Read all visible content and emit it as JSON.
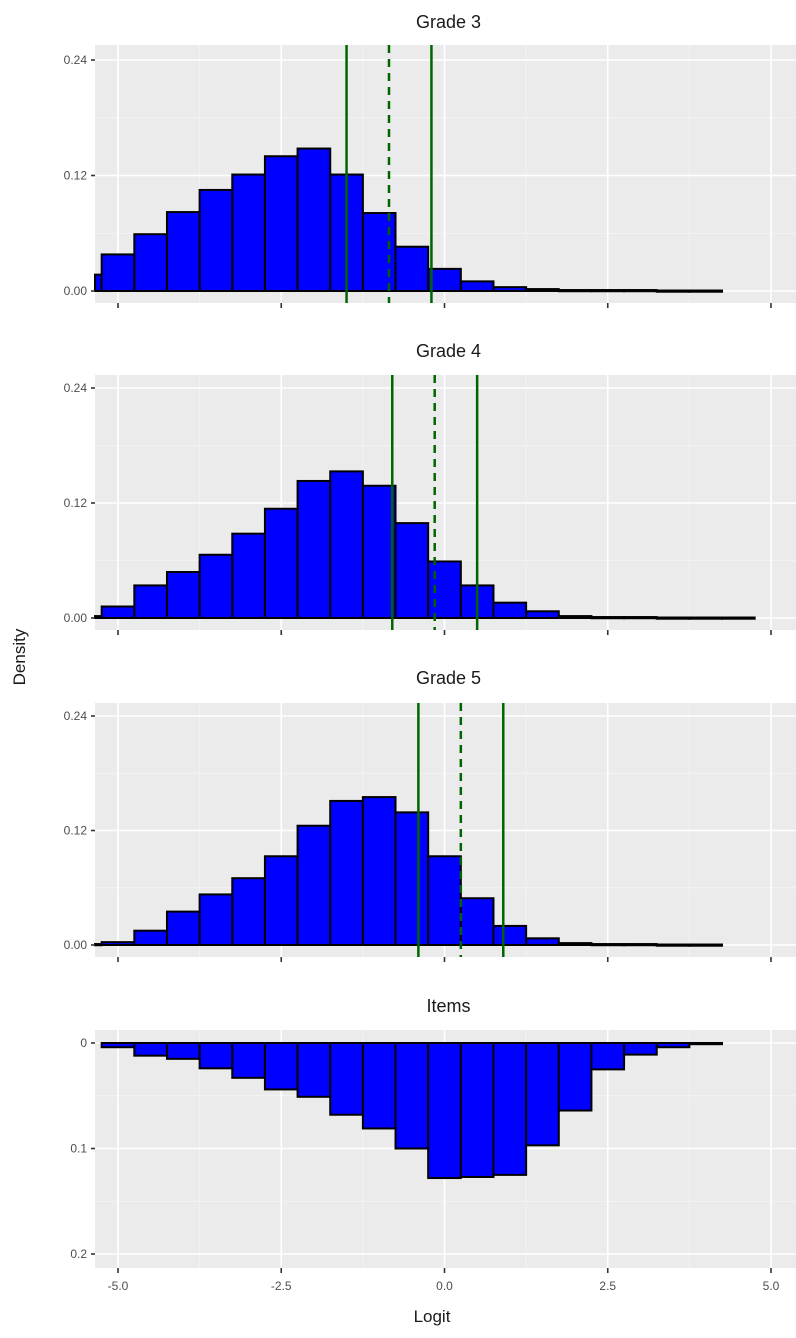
{
  "chart_data": {
    "type": "histogram",
    "ylabel": "Density",
    "xlabel": "Logit",
    "xlim": [
      -5.5,
      5.0
    ],
    "xticks": [
      -5.0,
      -2.5,
      0.0,
      2.5,
      5.0
    ],
    "xtick_labels": [
      "-5.0",
      "-2.5",
      "0.0",
      "2.5",
      "5.0"
    ],
    "bin_width": 0.5,
    "panels": [
      {
        "title": "Grade 3",
        "ylim": [
          0,
          0.24
        ],
        "yticks": [
          0,
          0.12,
          0.24
        ],
        "ytick_labels": [
          "0.00",
          "0.12",
          "0.24"
        ],
        "bar_color": "#0000ff",
        "bin_centers": [
          -5.5,
          -5.0,
          -4.5,
          -4.0,
          -3.5,
          -3.0,
          -2.5,
          -2.0,
          -1.5,
          -1.0,
          -0.5,
          0.0,
          0.5,
          1.0,
          1.5,
          2.0,
          2.5,
          3.0,
          3.5,
          4.0
        ],
        "density": [
          0.017,
          0.038,
          0.059,
          0.082,
          0.105,
          0.121,
          0.14,
          0.148,
          0.121,
          0.081,
          0.046,
          0.023,
          0.01,
          0.004,
          0.002,
          0.001,
          0.001,
          0.001,
          0.0005,
          0.0005
        ],
        "reference_lines": [
          {
            "x": -1.5,
            "style": "solid",
            "color": "#006400"
          },
          {
            "x": -0.85,
            "style": "dashed",
            "color": "#006400"
          },
          {
            "x": -0.2,
            "style": "solid",
            "color": "#006400"
          }
        ]
      },
      {
        "title": "Grade 4",
        "ylim": [
          0,
          0.24
        ],
        "yticks": [
          0,
          0.12,
          0.24
        ],
        "ytick_labels": [
          "0.00",
          "0.12",
          "0.24"
        ],
        "bar_color": "#0000ff",
        "bin_centers": [
          -5.5,
          -5.0,
          -4.5,
          -4.0,
          -3.5,
          -3.0,
          -2.5,
          -2.0,
          -1.5,
          -1.0,
          -0.5,
          0.0,
          0.5,
          1.0,
          1.5,
          2.0,
          2.5,
          3.0,
          3.5,
          4.0,
          4.5
        ],
        "density": [
          0.002,
          0.012,
          0.034,
          0.048,
          0.066,
          0.088,
          0.114,
          0.143,
          0.153,
          0.138,
          0.099,
          0.059,
          0.034,
          0.016,
          0.007,
          0.002,
          0.001,
          0.001,
          0.0005,
          0.0005,
          0.0005
        ],
        "reference_lines": [
          {
            "x": -0.8,
            "style": "solid",
            "color": "#006400"
          },
          {
            "x": -0.15,
            "style": "dashed",
            "color": "#006400"
          },
          {
            "x": 0.5,
            "style": "solid",
            "color": "#006400"
          }
        ]
      },
      {
        "title": "Grade 5",
        "ylim": [
          0,
          0.24
        ],
        "yticks": [
          0,
          0.12,
          0.24
        ],
        "ytick_labels": [
          "0.00",
          "0.12",
          "0.24"
        ],
        "bar_color": "#0000ff",
        "bin_centers": [
          -5.5,
          -5.0,
          -4.5,
          -4.0,
          -3.5,
          -3.0,
          -2.5,
          -2.0,
          -1.5,
          -1.0,
          -0.5,
          0.0,
          0.5,
          1.0,
          1.5,
          2.0,
          2.5,
          3.0,
          3.5,
          4.0
        ],
        "density": [
          0.001,
          0.003,
          0.015,
          0.035,
          0.053,
          0.07,
          0.093,
          0.125,
          0.151,
          0.155,
          0.139,
          0.093,
          0.049,
          0.02,
          0.007,
          0.002,
          0.001,
          0.001,
          0.0005,
          0.0005
        ],
        "reference_lines": [
          {
            "x": -0.4,
            "style": "solid",
            "color": "#006400"
          },
          {
            "x": 0.25,
            "style": "dashed",
            "color": "#006400"
          },
          {
            "x": 0.9,
            "style": "solid",
            "color": "#006400"
          }
        ]
      },
      {
        "title": "Items",
        "reversed_y": true,
        "ylim": [
          0,
          0.2
        ],
        "yticks": [
          0,
          0.1,
          0.2
        ],
        "ytick_labels": [
          "0",
          "0.1",
          "0.2"
        ],
        "bar_color": "#0000ff",
        "bin_centers": [
          -5.0,
          -4.5,
          -4.0,
          -3.5,
          -3.0,
          -2.5,
          -2.0,
          -1.5,
          -1.0,
          -0.5,
          0.0,
          0.5,
          1.0,
          1.5,
          2.0,
          2.5,
          3.0,
          3.5,
          4.0
        ],
        "density": [
          0.004,
          0.012,
          0.015,
          0.024,
          0.033,
          0.044,
          0.051,
          0.068,
          0.081,
          0.1,
          0.128,
          0.127,
          0.125,
          0.097,
          0.064,
          0.025,
          0.011,
          0.004,
          0.001
        ],
        "reference_lines": []
      }
    ]
  }
}
